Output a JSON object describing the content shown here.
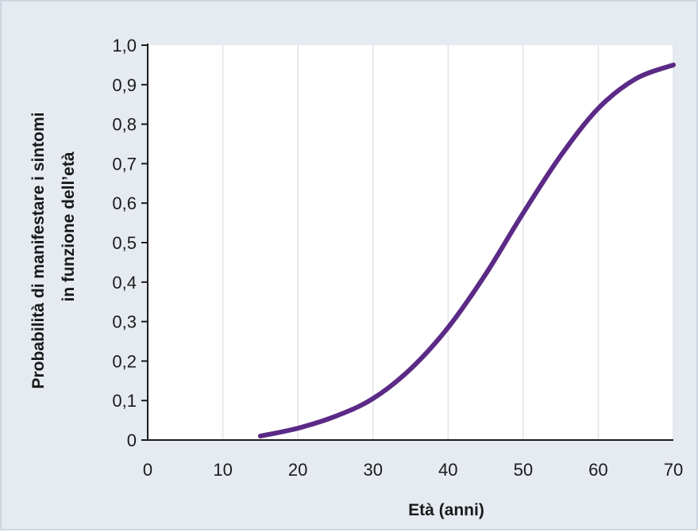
{
  "chart_data": {
    "type": "line",
    "title": "",
    "xlabel": "Età (anni)",
    "ylabel_lines": [
      "Probabilità di manifestare i sintomi",
      "in funzione dell’età"
    ],
    "xlim": [
      0,
      70
    ],
    "ylim": [
      0,
      1.0
    ],
    "x_ticks": [
      "0",
      "10",
      "20",
      "30",
      "40",
      "50",
      "60",
      "70"
    ],
    "y_ticks": [
      "0",
      "0,1",
      "0,2",
      "0,3",
      "0,4",
      "0,5",
      "0,6",
      "0,7",
      "0,8",
      "0,9",
      "1,0"
    ],
    "grid": "vertical",
    "series": [
      {
        "x": [
          15,
          20,
          25,
          30,
          35,
          40,
          45,
          50,
          55,
          60,
          65,
          70
        ],
        "y": [
          0.01,
          0.03,
          0.06,
          0.105,
          0.18,
          0.285,
          0.42,
          0.575,
          0.72,
          0.84,
          0.915,
          0.95
        ]
      }
    ]
  },
  "colors": {
    "background": "#e6ebf2",
    "plot_area": "#ffffff",
    "grid": "#dfe3ea",
    "axis": "#1a1a1a",
    "line": "#5b2a86"
  }
}
